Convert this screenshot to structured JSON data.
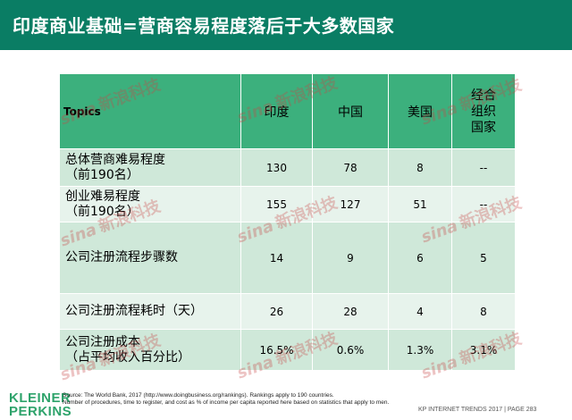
{
  "slide": {
    "title": "印度商业基础=营商容易程度落后于大多数国家"
  },
  "table": {
    "headers": [
      "Topics",
      "印度",
      "中国",
      "美国",
      "经合组织国家"
    ],
    "oecd_header_lines": [
      "经合",
      "组织",
      "国家"
    ],
    "rows": [
      {
        "label_lines": [
          "总体营商难易程度",
          "（前190名）"
        ],
        "values": [
          "130",
          "78",
          "8",
          "--"
        ]
      },
      {
        "label_lines": [
          "创业难易程度",
          "（前190名）"
        ],
        "values": [
          "155",
          "127",
          "51",
          "--"
        ]
      },
      {
        "label_lines": [
          "公司注册流程步骤数",
          ""
        ],
        "values": [
          "14",
          "9",
          "6",
          "5"
        ]
      },
      {
        "label_lines": [
          "公司注册流程耗时（天）",
          ""
        ],
        "values": [
          "26",
          "28",
          "4",
          "8"
        ]
      },
      {
        "label_lines": [
          "公司注册成本",
          "（占平均收入百分比）"
        ],
        "values": [
          "16.5%",
          "0.6%",
          "1.3%",
          "3.1%"
        ]
      }
    ]
  },
  "watermark": {
    "logo": "sina",
    "text": "新浪科技"
  },
  "logo": {
    "line1": "KLEINER",
    "line2": "PERKINS"
  },
  "footnote": {
    "line1": "Source: The World Bank, 2017 (http://www.doingbusiness.org/rankings). Rankings apply to 190 countries.",
    "line2": "Number of procedures, time to register, and cost as % of income per capita reported here based on statistics that apply to men."
  },
  "footer": {
    "text": "KP INTERNET TRENDS 2017  |  PAGE 283"
  },
  "colors": {
    "title_bar": "#0a7d64",
    "header_row": "#3cb07d",
    "row_dark": "#cfe8d9",
    "row_light": "#e7f3ec",
    "logo": "#2ea36b"
  }
}
